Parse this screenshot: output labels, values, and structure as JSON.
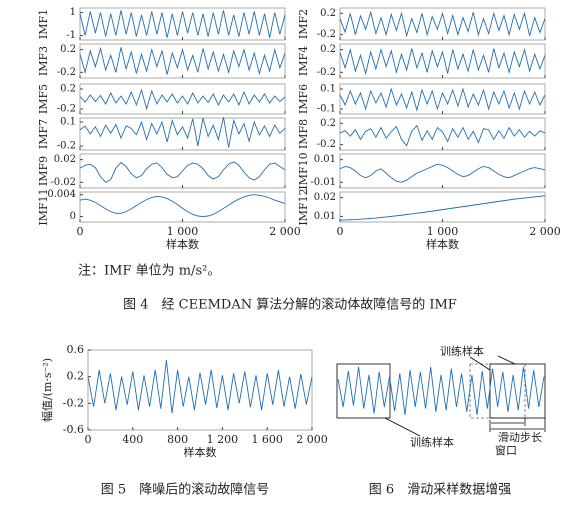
{
  "chart_data": [
    {
      "type": "line",
      "color": "#1f6fb5",
      "x": [
        0,
        50,
        100,
        150,
        200,
        250,
        300,
        350,
        400,
        450,
        500,
        550,
        600,
        650,
        700,
        750,
        800,
        850,
        900,
        950,
        1000,
        1050,
        1100,
        1150,
        1200,
        1250,
        1300,
        1350,
        1400,
        1450,
        1500,
        1550,
        1600,
        1650,
        1700,
        1750,
        1800,
        1850,
        1900,
        1950,
        2000
      ],
      "xlim": [
        0,
        2000
      ],
      "xticks": [
        0,
        {
          "value": 1000,
          "label": "1 000"
        },
        {
          "value": 2000,
          "label": "2 000"
        }
      ],
      "xlabel": "样本数",
      "panels": [
        {
          "ylabel": "IMF1",
          "ylim": [
            -1.4,
            1.4
          ],
          "yticks": [
            1,
            -1
          ],
          "values": [
            0.9,
            -1.0,
            1.1,
            -0.8,
            1.0,
            -1.1,
            0.9,
            -1.0,
            1.2,
            -0.9,
            1.0,
            -1.1,
            0.8,
            -1.0,
            1.1,
            -0.9,
            1.0,
            -1.2,
            0.9,
            -1.0,
            1.1,
            -0.8,
            1.0,
            -1.0,
            0.9,
            -1.1,
            1.0,
            -0.9,
            1.2,
            -1.0,
            0.8,
            -1.1,
            1.0,
            -0.9,
            1.1,
            -1.0,
            0.9,
            -1.2,
            1.0,
            -0.9,
            0.8
          ]
        },
        {
          "ylabel": "IMF2",
          "ylim": [
            -0.3,
            0.3
          ],
          "yticks": [
            0.2,
            -0.2
          ],
          "values": [
            0.1,
            -0.15,
            0.2,
            -0.2,
            0.15,
            -0.1,
            0.22,
            -0.18,
            0.12,
            -0.2,
            0.18,
            -0.12,
            0.2,
            -0.22,
            0.1,
            -0.16,
            0.2,
            -0.2,
            0.14,
            -0.1,
            0.2,
            -0.18,
            0.16,
            -0.2,
            0.12,
            -0.14,
            0.22,
            -0.2,
            0.1,
            -0.18,
            0.2,
            -0.12,
            0.16,
            -0.2,
            0.18,
            -0.1,
            0.2,
            -0.22,
            0.12,
            -0.16,
            0.1
          ]
        },
        {
          "ylabel": "IMF3",
          "ylim": [
            -0.3,
            0.3
          ],
          "yticks": [
            0.2,
            -0.2
          ],
          "values": [
            0.12,
            -0.2,
            0.18,
            -0.1,
            0.22,
            -0.16,
            0.1,
            -0.2,
            0.24,
            -0.14,
            0.16,
            -0.22,
            0.12,
            -0.18,
            0.2,
            -0.1,
            0.18,
            -0.24,
            0.14,
            -0.12,
            0.2,
            -0.16,
            0.1,
            -0.2,
            0.22,
            -0.14,
            0.16,
            -0.18,
            0.12,
            -0.2,
            0.18,
            -0.1,
            0.2,
            -0.16,
            0.14,
            -0.22,
            0.1,
            -0.18,
            0.2,
            -0.12,
            0.14
          ]
        },
        {
          "ylabel": "IMF4",
          "ylim": [
            -0.3,
            0.3
          ],
          "yticks": [
            0.2,
            -0.2
          ],
          "values": [
            0.15,
            -0.12,
            0.2,
            -0.18,
            0.1,
            -0.22,
            0.16,
            -0.14,
            0.2,
            -0.1,
            0.18,
            -0.2,
            0.12,
            -0.16,
            0.22,
            -0.12,
            0.14,
            -0.2,
            0.18,
            -0.1,
            0.16,
            -0.22,
            0.2,
            -0.14,
            0.12,
            -0.18,
            0.2,
            -0.16,
            0.1,
            -0.2,
            0.22,
            -0.12,
            0.14,
            -0.2,
            0.16,
            -0.1,
            0.2,
            -0.18,
            0.12,
            -0.14,
            0.1
          ]
        },
        {
          "ylabel": "IMF5",
          "ylim": [
            -0.3,
            0.3
          ],
          "yticks": [
            0.2,
            -0.2
          ],
          "values": [
            0.05,
            -0.06,
            0.08,
            -0.05,
            0.07,
            -0.1,
            0.12,
            -0.08,
            0.06,
            -0.1,
            0.14,
            -0.12,
            0.18,
            -0.2,
            0.16,
            -0.1,
            0.08,
            -0.06,
            0.1,
            -0.08,
            0.06,
            -0.1,
            0.12,
            -0.08,
            0.06,
            -0.07,
            0.1,
            -0.12,
            0.08,
            -0.06,
            0.1,
            -0.12,
            0.14,
            -0.1,
            0.08,
            -0.06,
            0.1,
            -0.08,
            0.06,
            -0.05,
            0.04
          ]
        },
        {
          "ylabel": "IMF6",
          "ylim": [
            -0.15,
            0.15
          ],
          "yticks": [
            0.1,
            -0.1
          ],
          "values": [
            0.04,
            -0.06,
            0.08,
            -0.05,
            0.06,
            -0.1,
            0.08,
            -0.04,
            0.06,
            -0.08,
            0.1,
            -0.06,
            0.05,
            -0.09,
            0.07,
            -0.11,
            0.09,
            -0.05,
            0.08,
            -0.1,
            0.06,
            -0.05,
            0.09,
            -0.07,
            0.1,
            -0.08,
            0.05,
            -0.06,
            0.09,
            -0.1,
            0.07,
            -0.05,
            0.08,
            -0.09,
            0.06,
            -0.1,
            0.08,
            -0.05,
            0.07,
            -0.06,
            0.04
          ]
        },
        {
          "ylabel": "IMF7",
          "ylim": [
            -0.25,
            0.15
          ],
          "yticks": [
            0.1,
            -0.2
          ],
          "values": [
            0,
            0.05,
            -0.05,
            0.04,
            -0.08,
            0.06,
            -0.04,
            0.07,
            -0.1,
            0.05,
            0.02,
            -0.06,
            0.1,
            -0.12,
            0.08,
            -0.05,
            0.1,
            -0.15,
            0.12,
            -0.06,
            0.04,
            -0.1,
            0.14,
            -0.2,
            0.15,
            -0.08,
            0.06,
            -0.12,
            0.16,
            -0.22,
            0.12,
            -0.05,
            0.08,
            -0.14,
            0.1,
            -0.06,
            0.05,
            -0.08,
            0.06,
            -0.04,
            0.02
          ]
        },
        {
          "ylabel": "IMF8",
          "ylim": [
            -0.3,
            0.3
          ],
          "yticks": [
            0.2,
            -0.2
          ],
          "values": [
            0.02,
            0.06,
            -0.04,
            0.08,
            -0.1,
            0.05,
            0.1,
            -0.06,
            0.12,
            -0.08,
            0.04,
            0.14,
            -0.1,
            -0.22,
            0.05,
            0.16,
            -0.12,
            0.06,
            -0.1,
            0.12,
            0.04,
            -0.14,
            0.1,
            -0.06,
            0.12,
            -0.1,
            0.05,
            -0.16,
            0.1,
            0.08,
            -0.1,
            0.06,
            -0.08,
            0.12,
            -0.04,
            0.08,
            -0.06,
            0.05,
            -0.04,
            0.06,
            0.02
          ]
        },
        {
          "ylabel": "IMF9",
          "ylim": [
            -0.03,
            0.03
          ],
          "yticks": [
            0.02,
            -0.02
          ],
          "values": [
            0.005,
            0.01,
            0.012,
            0.006,
            -0.01,
            -0.02,
            -0.015,
            0.005,
            0.015,
            0.008,
            -0.005,
            -0.012,
            -0.008,
            0.004,
            0.012,
            0.014,
            0.006,
            -0.006,
            -0.012,
            -0.01,
            0.0,
            0.01,
            0.014,
            0.012,
            0.004,
            -0.008,
            -0.014,
            -0.01,
            0.002,
            0.012,
            0.016,
            0.01,
            -0.002,
            -0.012,
            -0.016,
            -0.01,
            0.002,
            0.012,
            0.014,
            0.008,
            0.002
          ]
        },
        {
          "ylabel": "IMF10",
          "ylim": [
            -0.015,
            0.015
          ],
          "yticks": [
            0.01,
            -0.01
          ],
          "values": [
            0.002,
            0.004,
            0.003,
            0.0,
            -0.004,
            -0.006,
            -0.004,
            0.0,
            0.002,
            -0.002,
            -0.006,
            -0.009,
            -0.01,
            -0.008,
            -0.005,
            -0.002,
            0.0,
            0.002,
            0.004,
            0.006,
            0.005,
            0.003,
            0.0,
            -0.003,
            -0.005,
            -0.004,
            -0.001,
            0.002,
            0.004,
            0.003,
            0.0,
            -0.003,
            -0.005,
            -0.006,
            -0.004,
            -0.002,
            0.0,
            0.002,
            0.003,
            0.002,
            0.001
          ]
        },
        {
          "ylabel": "IMF11",
          "ylim": [
            -0.001,
            0.0045
          ],
          "yticks": [
            0.004,
            0
          ],
          "values": [
            0.003,
            0.0032,
            0.003,
            0.0026,
            0.002,
            0.0014,
            0.0009,
            0.0006,
            0.0006,
            0.0009,
            0.0014,
            0.002,
            0.0026,
            0.0031,
            0.0035,
            0.0037,
            0.0036,
            0.0033,
            0.0028,
            0.0022,
            0.0015,
            0.0009,
            0.0004,
            0.0001,
            0.0,
            0.0001,
            0.0004,
            0.0009,
            0.0015,
            0.0021,
            0.0027,
            0.0032,
            0.0036,
            0.0039,
            0.004,
            0.0039,
            0.0037,
            0.0034,
            0.003,
            0.0027,
            0.0024
          ]
        },
        {
          "ylabel": "IMF12",
          "ylim": [
            0.007,
            0.023
          ],
          "yticks": [
            0.02,
            0.01
          ],
          "values": [
            0.008,
            0.0081,
            0.0082,
            0.0083,
            0.0085,
            0.0087,
            0.0089,
            0.0091,
            0.0094,
            0.0097,
            0.01,
            0.0103,
            0.0106,
            0.011,
            0.0113,
            0.0117,
            0.012,
            0.0124,
            0.0128,
            0.0132,
            0.0136,
            0.014,
            0.0144,
            0.0148,
            0.0152,
            0.0156,
            0.016,
            0.0164,
            0.0168,
            0.0172,
            0.0176,
            0.018,
            0.0184,
            0.0188,
            0.0192,
            0.0195,
            0.0198,
            0.0201,
            0.0204,
            0.0207,
            0.021
          ]
        }
      ],
      "note": "注：IMF 单位为 m/s²。",
      "caption": "图 4　经 CEEMDAN 算法分解的滚动体故障信号的 IMF"
    },
    {
      "type": "line",
      "color": "#1f6fb5",
      "x": [
        0,
        50,
        100,
        150,
        200,
        250,
        300,
        350,
        400,
        450,
        500,
        550,
        600,
        650,
        700,
        750,
        800,
        850,
        900,
        950,
        1000,
        1050,
        1100,
        1150,
        1200,
        1250,
        1300,
        1350,
        1400,
        1450,
        1500,
        1550,
        1600,
        1650,
        1700,
        1750,
        1800,
        1850,
        1900,
        1950,
        2000
      ],
      "values": [
        0.2,
        -0.25,
        0.3,
        -0.2,
        0.25,
        -0.3,
        0.2,
        -0.22,
        0.28,
        -0.3,
        0.22,
        -0.25,
        0.3,
        -0.28,
        0.45,
        -0.35,
        0.3,
        -0.25,
        0.2,
        -0.3,
        0.26,
        -0.22,
        0.3,
        -0.27,
        0.22,
        -0.3,
        0.25,
        -0.2,
        0.28,
        -0.26,
        0.22,
        -0.3,
        0.25,
        -0.22,
        0.3,
        -0.25,
        0.2,
        -0.28,
        0.24,
        -0.22,
        0.2
      ],
      "xlim": [
        0,
        2000
      ],
      "xticks": [
        0,
        400,
        800,
        {
          "value": 1200,
          "label": "1 200"
        },
        {
          "value": 1600,
          "label": "1 600"
        },
        {
          "value": 2000,
          "label": "2 000"
        }
      ],
      "ylim": [
        -0.6,
        0.6
      ],
      "yticks": [
        0.6,
        0.2,
        -0.2,
        -0.6
      ],
      "xlabel": "样本数",
      "ylabel": "幅值/(m·s⁻²)",
      "caption": "图 5　降噪后的滚动故障信号"
    },
    {
      "type": "line",
      "color": "#1f6fb5",
      "values": [
        0.15,
        -0.2,
        0.25,
        -0.18,
        0.3,
        -0.22,
        0.2,
        -0.28,
        0.24,
        -0.2,
        0.18,
        -0.25,
        0.22,
        -0.3,
        0.26,
        -0.2,
        0.24,
        -0.22,
        0.3,
        -0.26,
        0.2,
        -0.24,
        0.28,
        -0.2,
        0.22,
        -0.26,
        0.2,
        -0.3,
        0.25,
        -0.22,
        0.28,
        -0.2,
        0.24,
        -0.26,
        0.2,
        -0.24,
        0.3,
        -0.22,
        0.26,
        -0.2,
        0.18
      ],
      "annotations": [
        "训练样本",
        "训练样本",
        "滑动步长",
        "窗口"
      ],
      "caption": "图 6　滑动采样数据增强"
    }
  ]
}
